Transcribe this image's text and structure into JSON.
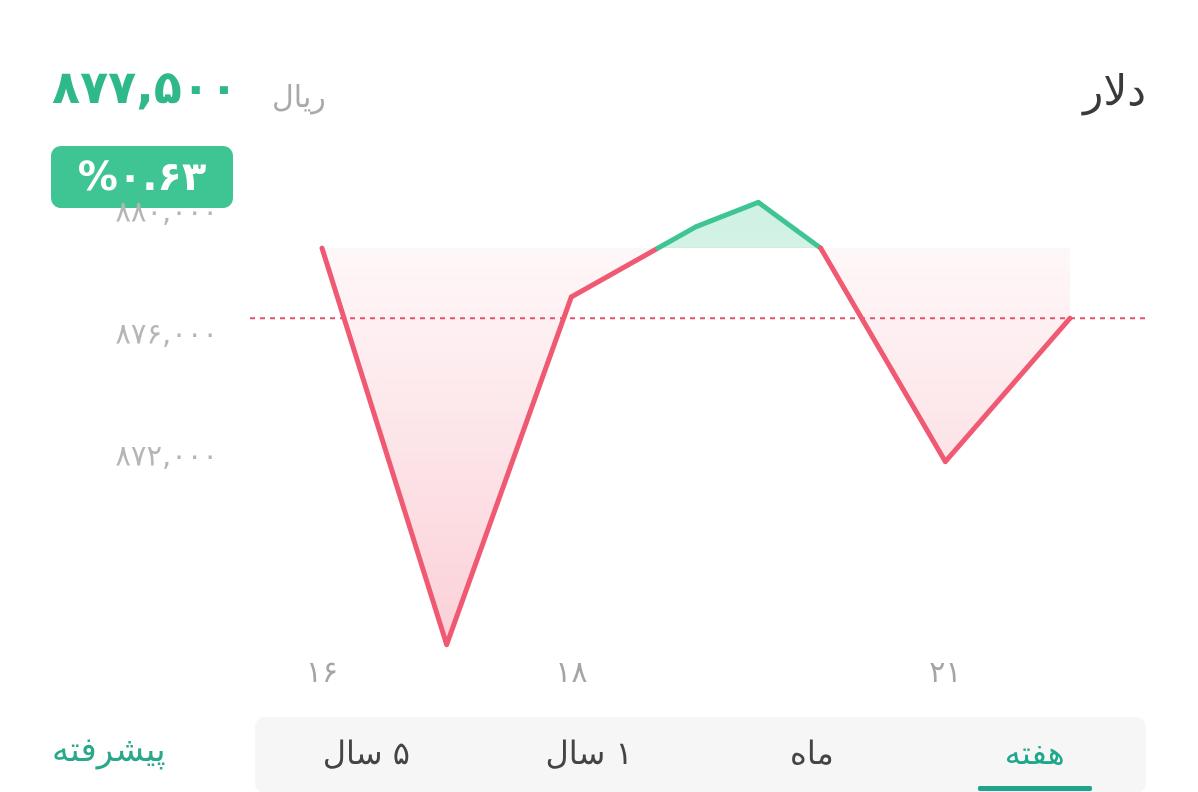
{
  "header": {
    "currency_name": "دلار",
    "price": "۸۷۷,۵۰۰",
    "unit": "ریال",
    "change_percent": "%۰.۶۳"
  },
  "colors": {
    "up": "#3fc593",
    "down": "#ef5a72",
    "reference_line": "#e0556c",
    "accent": "#1fa38b"
  },
  "chart_data": {
    "type": "line",
    "x": [
      16,
      17,
      18,
      19,
      19.5,
      20,
      21,
      22
    ],
    "y": [
      878800,
      865800,
      877200,
      879500,
      880300,
      878800,
      871800,
      876500
    ],
    "y_tick_labels": [
      "۸۸۰,۰۰۰",
      "۸۷۶,۰۰۰",
      "۸۷۲,۰۰۰"
    ],
    "y_ticks": [
      880000,
      876000,
      872000
    ],
    "x_tick_labels": [
      "۱۶",
      "۱۸",
      "۲۱"
    ],
    "x_ticks": [
      16,
      18,
      21
    ],
    "reference_value": 876500,
    "ylim": [
      863000,
      883000
    ],
    "xlim": [
      16,
      22
    ],
    "grid": false,
    "title": "",
    "xlabel": "",
    "ylabel": ""
  },
  "periods": {
    "tabs": [
      {
        "label": "هفته",
        "active": true
      },
      {
        "label": "ماه",
        "active": false
      },
      {
        "label": "۱ سال",
        "active": false
      },
      {
        "label": "۵ سال",
        "active": false
      }
    ]
  },
  "advanced_label": "پیشرفته"
}
